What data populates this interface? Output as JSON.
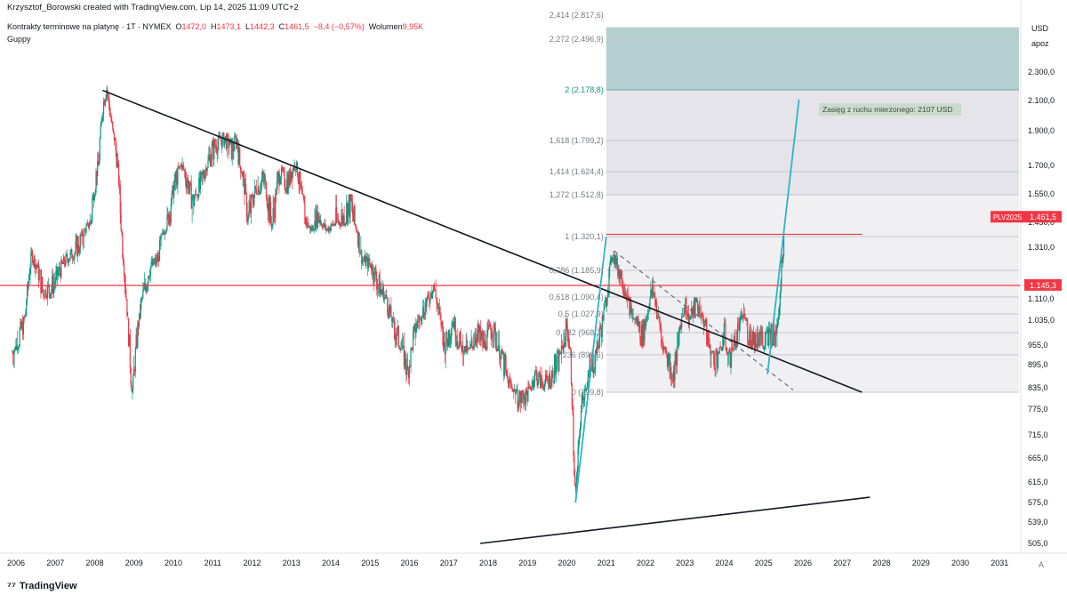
{
  "header": {
    "credit": "Krzysztof_Borowski created with TradingView.com, Lip 14, 2025 11:09 UTC+2",
    "symbol": "Kontrakty terminowe na platynę · 1T · NYMEX",
    "o_label": "O",
    "o_value": "1472,0",
    "h_label": "H",
    "h_value": "1473,1",
    "l_label": "L",
    "l_value": "1442,3",
    "c_label": "C",
    "c_value": "1461,5",
    "change": "−8,4 (−0,57%)",
    "vol_label": "Wolumen",
    "vol_value": "9,95K",
    "indicator": "Guppy"
  },
  "price_axis": {
    "currency": "USD",
    "scale": "apoz",
    "ticks": [
      "2.300,0",
      "2.100,0",
      "1.900,0",
      "1.700,0",
      "1.550,0",
      "1.450,0",
      "1.310,0",
      "1.110,0",
      "1.035,0",
      "955,0",
      "895,0",
      "835,0",
      "775,0",
      "715,0",
      "665,0",
      "615,0",
      "575,0",
      "539,0",
      "505,0"
    ],
    "badges": [
      {
        "label": "PLV2025",
        "value": "1.461,5",
        "color": "#f23645"
      },
      {
        "value": "1.145,3",
        "color": "#f23645"
      }
    ]
  },
  "fib_levels": [
    {
      "label": "2,414 (2.817,6)"
    },
    {
      "label": "2,272 (2.496,9)"
    },
    {
      "label": "2 (2.178,8)",
      "color": "#089981"
    },
    {
      "label": "1,618 (1.799,2)"
    },
    {
      "label": "1,414 (1.624,4)"
    },
    {
      "label": "1,272 (1.512,8)"
    },
    {
      "label": "1 (1.320,1)"
    },
    {
      "label": "0,786 (1.185,9)"
    },
    {
      "label": "0,618 (1.090,4)"
    },
    {
      "label": "0,5 (1.027,9)"
    },
    {
      "label": "0,382 (968,3)"
    },
    {
      "label": "0,236 (898,6)"
    },
    {
      "label": "0 (799,8)"
    }
  ],
  "annotation": "Zasięg z ruchu mierzonego: 2107 USD",
  "time_axis": [
    "2006",
    "2007",
    "2008",
    "2009",
    "2010",
    "2011",
    "2012",
    "2013",
    "2014",
    "2015",
    "2016",
    "2017",
    "2018",
    "2019",
    "2020",
    "2021",
    "2022",
    "2023",
    "2024",
    "2025",
    "2026",
    "2027",
    "2028",
    "2029",
    "2030",
    "2031"
  ],
  "footer": {
    "brand": "TradingView",
    "auto": "A"
  },
  "colors": {
    "bull": "#089981",
    "bear": "#f23645",
    "trend": "#131722",
    "projection": "#2eb4c8",
    "fibTop": "#a8c8c8",
    "fibMid": "#e4e4ea",
    "fibLow": "#f0f0f3"
  },
  "chart_data": {
    "type": "candlestick",
    "title": "Kontrakty terminowe na platynę · 1T · NYMEX",
    "ylabel": "USD",
    "xlim": [
      2006,
      2031
    ],
    "ylim": [
      505,
      2500
    ],
    "y_scale": "log",
    "close_path": [
      [
        2005.9,
        915
      ],
      [
        2006.2,
        1000
      ],
      [
        2006.4,
        1270
      ],
      [
        2006.7,
        1120
      ],
      [
        2006.9,
        1140
      ],
      [
        2007.0,
        1160
      ],
      [
        2007.3,
        1250
      ],
      [
        2007.6,
        1300
      ],
      [
        2007.9,
        1450
      ],
      [
        2008.1,
        1700
      ],
      [
        2008.2,
        2050
      ],
      [
        2008.3,
        2200
      ],
      [
        2008.45,
        1900
      ],
      [
        2008.6,
        1650
      ],
      [
        2008.7,
        1300
      ],
      [
        2008.8,
        1100
      ],
      [
        2008.9,
        900
      ],
      [
        2008.95,
        800
      ],
      [
        2009.0,
        880
      ],
      [
        2009.2,
        1100
      ],
      [
        2009.4,
        1200
      ],
      [
        2009.6,
        1240
      ],
      [
        2009.8,
        1400
      ],
      [
        2010.0,
        1550
      ],
      [
        2010.2,
        1700
      ],
      [
        2010.3,
        1620
      ],
      [
        2010.5,
        1500
      ],
      [
        2010.7,
        1580
      ],
      [
        2010.9,
        1720
      ],
      [
        2011.1,
        1800
      ],
      [
        2011.3,
        1830
      ],
      [
        2011.5,
        1760
      ],
      [
        2011.6,
        1830
      ],
      [
        2011.7,
        1680
      ],
      [
        2011.9,
        1450
      ],
      [
        2012.1,
        1560
      ],
      [
        2012.3,
        1600
      ],
      [
        2012.5,
        1420
      ],
      [
        2012.7,
        1640
      ],
      [
        2012.9,
        1580
      ],
      [
        2013.1,
        1700
      ],
      [
        2013.3,
        1480
      ],
      [
        2013.5,
        1380
      ],
      [
        2013.7,
        1470
      ],
      [
        2013.9,
        1380
      ],
      [
        2014.1,
        1440
      ],
      [
        2014.3,
        1450
      ],
      [
        2014.5,
        1500
      ],
      [
        2014.6,
        1440
      ],
      [
        2014.8,
        1240
      ],
      [
        2015.0,
        1220
      ],
      [
        2015.2,
        1150
      ],
      [
        2015.4,
        1100
      ],
      [
        2015.6,
        990
      ],
      [
        2015.8,
        940
      ],
      [
        2015.95,
        870
      ],
      [
        2016.1,
        960
      ],
      [
        2016.3,
        1040
      ],
      [
        2016.5,
        1100
      ],
      [
        2016.6,
        1160
      ],
      [
        2016.7,
        1080
      ],
      [
        2016.9,
        930
      ],
      [
        2017.1,
        1010
      ],
      [
        2017.3,
        940
      ],
      [
        2017.5,
        920
      ],
      [
        2017.7,
        980
      ],
      [
        2017.9,
        940
      ],
      [
        2018.1,
        990
      ],
      [
        2018.3,
        920
      ],
      [
        2018.5,
        850
      ],
      [
        2018.7,
        810
      ],
      [
        2018.8,
        790
      ],
      [
        2019.0,
        810
      ],
      [
        2019.2,
        870
      ],
      [
        2019.4,
        840
      ],
      [
        2019.6,
        860
      ],
      [
        2019.8,
        900
      ],
      [
        2019.9,
        940
      ],
      [
        2020.0,
        1000
      ],
      [
        2020.1,
        900
      ],
      [
        2020.18,
        650
      ],
      [
        2020.22,
        580
      ],
      [
        2020.35,
        760
      ],
      [
        2020.5,
        850
      ],
      [
        2020.7,
        900
      ],
      [
        2020.9,
        1000
      ],
      [
        2021.0,
        1100
      ],
      [
        2021.1,
        1200
      ],
      [
        2021.15,
        1280
      ],
      [
        2021.3,
        1200
      ],
      [
        2021.5,
        1130
      ],
      [
        2021.6,
        1050
      ],
      [
        2021.8,
        1000
      ],
      [
        2021.9,
        970
      ],
      [
        2022.0,
        1000
      ],
      [
        2022.1,
        1100
      ],
      [
        2022.2,
        1130
      ],
      [
        2022.4,
        960
      ],
      [
        2022.6,
        890
      ],
      [
        2022.7,
        860
      ],
      [
        2022.8,
        920
      ],
      [
        2022.9,
        1010
      ],
      [
        2023.0,
        1090
      ],
      [
        2023.1,
        1010
      ],
      [
        2023.3,
        1080
      ],
      [
        2023.5,
        1000
      ],
      [
        2023.7,
        900
      ],
      [
        2023.9,
        920
      ],
      [
        2024.0,
        980
      ],
      [
        2024.1,
        900
      ],
      [
        2024.3,
        960
      ],
      [
        2024.5,
        1040
      ],
      [
        2024.6,
        980
      ],
      [
        2024.8,
        950
      ],
      [
        2024.9,
        980
      ],
      [
        2025.0,
        940
      ],
      [
        2025.2,
        980
      ],
      [
        2025.3,
        960
      ],
      [
        2025.4,
        1080
      ],
      [
        2025.45,
        1200
      ],
      [
        2025.5,
        1300
      ],
      [
        2025.53,
        1461.5
      ]
    ],
    "trend_lines": [
      {
        "name": "downtrend",
        "points": [
          [
            2008.2,
            2175
          ],
          [
            2027.5,
            800
          ]
        ]
      },
      {
        "name": "support",
        "points": [
          [
            2017.8,
            505
          ],
          [
            2027.7,
            585
          ]
        ]
      },
      {
        "name": "channel-dashed",
        "points": [
          [
            2021.2,
            1290
          ],
          [
            2025.75,
            818
          ]
        ]
      },
      {
        "name": "projection-1",
        "points": [
          [
            2020.22,
            575
          ],
          [
            2021.0,
            1320
          ]
        ]
      },
      {
        "name": "projection-2",
        "points": [
          [
            2025.1,
            870
          ],
          [
            2025.9,
            2107
          ]
        ]
      }
    ],
    "horizontal_lines": [
      {
        "value": 1145.3,
        "color": "#f23645"
      },
      {
        "value": 1340,
        "from": 2021.0,
        "to": 2027.5,
        "color": "#f23645"
      }
    ],
    "fib_zone_years": [
      2021.0,
      2031.4
    ]
  }
}
